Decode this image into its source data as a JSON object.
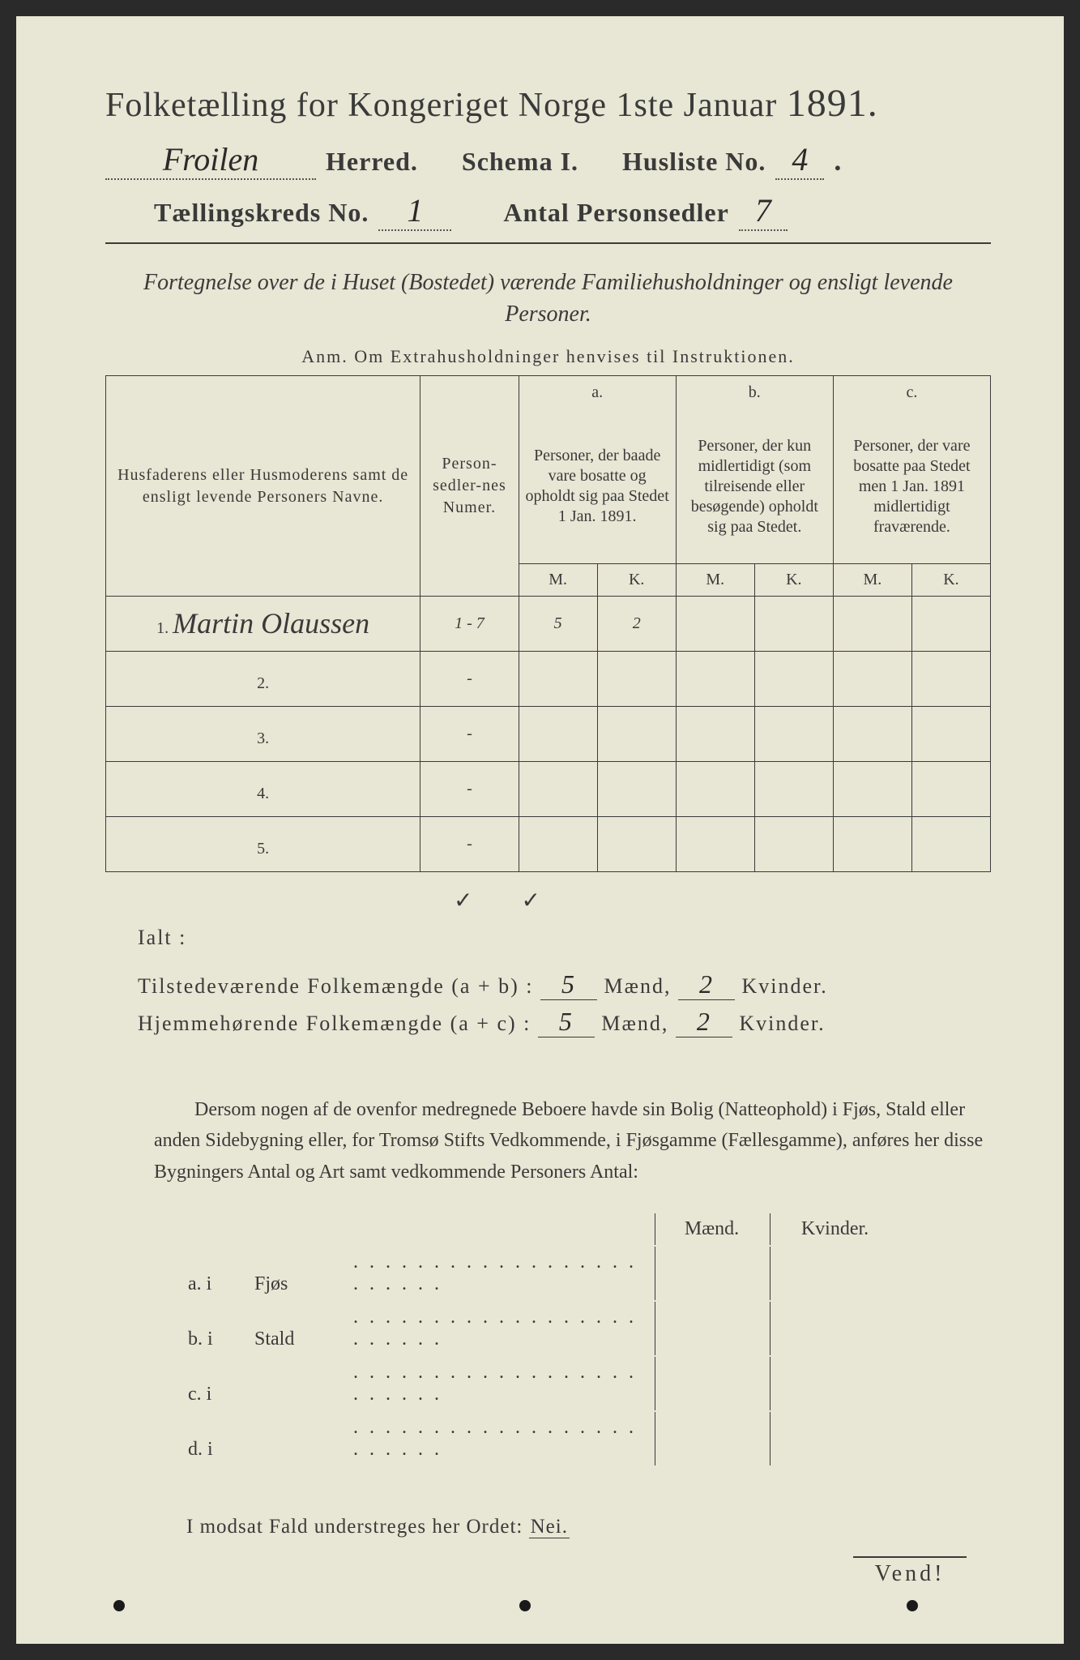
{
  "title": {
    "text_a": "Folketælling for Kongeriget Norge 1ste Januar",
    "year": "1891."
  },
  "header": {
    "herred_value": "Froilen",
    "herred_label": "Herred.",
    "schema_label": "Schema I.",
    "husliste_label": "Husliste No.",
    "husliste_value": "4",
    "kreds_label": "Tællingskreds No.",
    "kreds_value": "1",
    "antal_label": "Antal Personsedler",
    "antal_value": "7"
  },
  "subtitle": "Fortegnelse over de i Huset (Bostedet) værende Familiehusholdninger og ensligt levende Personer.",
  "anm": "Anm.  Om Extrahusholdninger henvises til Instruktionen.",
  "table": {
    "col_name": "Husfaderens eller Husmoderens samt de ensligt levende Personers Navne.",
    "col_num": "Person-sedler-nes Numer.",
    "col_a_top": "a.",
    "col_a": "Personer, der baade vare bosatte og opholdt sig paa Stedet 1 Jan. 1891.",
    "col_b_top": "b.",
    "col_b": "Personer, der kun midlertidigt (som tilreisende eller besøgende) opholdt sig paa Stedet.",
    "col_c_top": "c.",
    "col_c": "Personer, der vare bosatte paa Stedet men 1 Jan. 1891 midlertidigt fraværende.",
    "m": "M.",
    "k": "K.",
    "rows": [
      {
        "n": "1.",
        "name": "Martin Olaussen",
        "num": "1 - 7",
        "a_m": "5",
        "a_k": "2",
        "b_m": "",
        "b_k": "",
        "c_m": "",
        "c_k": ""
      },
      {
        "n": "2.",
        "name": "",
        "num": "-",
        "a_m": "",
        "a_k": "",
        "b_m": "",
        "b_k": "",
        "c_m": "",
        "c_k": ""
      },
      {
        "n": "3.",
        "name": "",
        "num": "-",
        "a_m": "",
        "a_k": "",
        "b_m": "",
        "b_k": "",
        "c_m": "",
        "c_k": ""
      },
      {
        "n": "4.",
        "name": "",
        "num": "-",
        "a_m": "",
        "a_k": "",
        "b_m": "",
        "b_k": "",
        "c_m": "",
        "c_k": ""
      },
      {
        "n": "5.",
        "name": "",
        "num": "-",
        "a_m": "",
        "a_k": "",
        "b_m": "",
        "b_k": "",
        "c_m": "",
        "c_k": ""
      }
    ],
    "checkrow": {
      "a_m": "✓",
      "a_k": "✓"
    }
  },
  "ialt": "Ialt :",
  "totals": {
    "line1_label": "Tilstedeværende Folkemængde (a + b) :",
    "line1_m": "5",
    "line1_k": "2",
    "line2_label": "Hjemmehørende Folkemængde (a + c) :",
    "line2_m": "5",
    "line2_k": "2",
    "maend": "Mænd,",
    "kvinder": "Kvinder."
  },
  "paragraph": "Dersom nogen af de ovenfor medregnede Beboere havde sin Bolig (Natteophold) i Fjøs, Stald eller anden Sidebygning eller, for Tromsø Stifts Vedkommende, i Fjøsgamme (Fællesgamme), anføres her disse Bygningers Antal og Art samt vedkommende Personers Antal:",
  "bottom": {
    "maend": "Mænd.",
    "kvinder": "Kvinder.",
    "rows": [
      {
        "k": "a.  i",
        "label": "Fjøs"
      },
      {
        "k": "b.  i",
        "label": "Stald"
      },
      {
        "k": "c.  i",
        "label": ""
      },
      {
        "k": "d.  i",
        "label": ""
      }
    ]
  },
  "modsat": "I modsat Fald understreges her Ordet:",
  "nei": "Nei.",
  "vend": "Vend!",
  "colors": {
    "paper": "#e8e6d4",
    "ink": "#3a3a3a"
  }
}
